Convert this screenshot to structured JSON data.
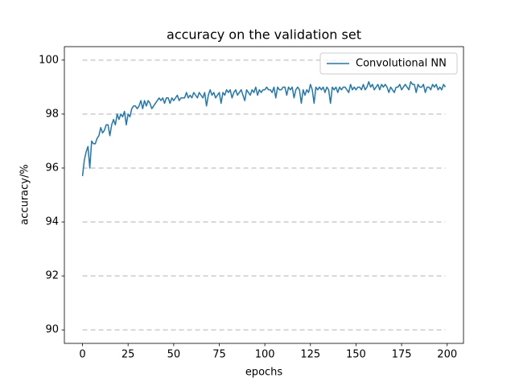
{
  "chart_data": {
    "type": "line",
    "title": "accuracy on the validation set",
    "x_label": "epochs",
    "y_label": "accuracy/%",
    "x": [
      0,
      1,
      2,
      3,
      4,
      5,
      6,
      7,
      8,
      9,
      10,
      11,
      12,
      13,
      14,
      15,
      16,
      17,
      18,
      19,
      20,
      21,
      22,
      23,
      24,
      25,
      26,
      27,
      28,
      29,
      30,
      31,
      32,
      33,
      34,
      35,
      36,
      37,
      38,
      39,
      40,
      41,
      42,
      43,
      44,
      45,
      46,
      47,
      48,
      49,
      50,
      51,
      52,
      53,
      54,
      55,
      56,
      57,
      58,
      59,
      60,
      61,
      62,
      63,
      64,
      65,
      66,
      67,
      68,
      69,
      70,
      71,
      72,
      73,
      74,
      75,
      76,
      77,
      78,
      79,
      80,
      81,
      82,
      83,
      84,
      85,
      86,
      87,
      88,
      89,
      90,
      91,
      92,
      93,
      94,
      95,
      96,
      97,
      98,
      99,
      100,
      101,
      102,
      103,
      104,
      105,
      106,
      107,
      108,
      109,
      110,
      111,
      112,
      113,
      114,
      115,
      116,
      117,
      118,
      119,
      120,
      121,
      122,
      123,
      124,
      125,
      126,
      127,
      128,
      129,
      130,
      131,
      132,
      133,
      134,
      135,
      136,
      137,
      138,
      139,
      140,
      141,
      142,
      143,
      144,
      145,
      146,
      147,
      148,
      149,
      150,
      151,
      152,
      153,
      154,
      155,
      156,
      157,
      158,
      159,
      160,
      161,
      162,
      163,
      164,
      165,
      166,
      167,
      168,
      169,
      170,
      171,
      172,
      173,
      174,
      175,
      176,
      177,
      178,
      179,
      180,
      181,
      182,
      183,
      184,
      185,
      186,
      187,
      188,
      189,
      190,
      191,
      192,
      193,
      194,
      195,
      196,
      197,
      198,
      199
    ],
    "series": [
      {
        "name": "Convolutional NN",
        "color": "#1f77b4",
        "values": [
          95.7,
          96.3,
          96.6,
          96.8,
          96.0,
          97.0,
          96.9,
          96.9,
          97.1,
          97.2,
          97.5,
          97.3,
          97.4,
          97.6,
          97.6,
          97.2,
          97.6,
          97.8,
          97.6,
          98.0,
          97.8,
          98.0,
          97.9,
          98.1,
          97.6,
          98.0,
          97.9,
          98.2,
          98.3,
          98.3,
          98.2,
          98.3,
          98.5,
          98.2,
          98.5,
          98.3,
          98.5,
          98.4,
          98.2,
          98.3,
          98.4,
          98.5,
          98.6,
          98.5,
          98.6,
          98.4,
          98.6,
          98.6,
          98.4,
          98.6,
          98.5,
          98.6,
          98.7,
          98.5,
          98.6,
          98.6,
          98.6,
          98.8,
          98.6,
          98.7,
          98.6,
          98.8,
          98.7,
          98.6,
          98.8,
          98.7,
          98.6,
          98.8,
          98.3,
          98.7,
          98.9,
          98.7,
          98.8,
          98.6,
          98.7,
          98.8,
          98.4,
          98.8,
          98.7,
          98.9,
          98.8,
          98.9,
          98.6,
          98.8,
          98.9,
          98.7,
          98.8,
          98.9,
          98.7,
          98.5,
          98.9,
          98.8,
          98.7,
          98.9,
          98.8,
          99.0,
          98.7,
          98.9,
          98.8,
          98.9,
          98.9,
          99.0,
          98.9,
          98.9,
          98.8,
          99.0,
          98.6,
          99.0,
          98.9,
          98.9,
          99.0,
          99.0,
          98.7,
          99.0,
          98.9,
          99.0,
          98.6,
          98.9,
          99.0,
          98.9,
          98.4,
          98.9,
          98.7,
          98.9,
          98.8,
          99.1,
          98.9,
          98.4,
          99.0,
          98.9,
          99.0,
          98.9,
          99.0,
          98.8,
          99.0,
          98.9,
          98.4,
          99.0,
          98.9,
          99.0,
          98.8,
          99.0,
          98.9,
          99.0,
          99.0,
          98.9,
          98.8,
          99.1,
          98.9,
          99.0,
          98.9,
          99.0,
          99.0,
          98.9,
          99.1,
          98.9,
          99.0,
          99.2,
          99.0,
          99.1,
          98.9,
          99.0,
          99.1,
          98.9,
          99.1,
          99.0,
          99.1,
          99.0,
          98.8,
          99.0,
          98.9,
          98.8,
          99.0,
          99.0,
          99.1,
          98.9,
          99.0,
          99.1,
          99.0,
          98.9,
          99.2,
          99.1,
          99.1,
          98.8,
          99.1,
          99.0,
          99.0,
          99.1,
          98.8,
          99.0,
          99.0,
          98.9,
          99.1,
          99.0,
          99.1,
          98.9,
          99.0,
          98.9,
          99.1,
          99.0
        ]
      }
    ],
    "xlim": [
      -9.95,
      208.95
    ],
    "ylim": [
      89.5,
      100.5
    ],
    "xticks": [
      0,
      25,
      50,
      75,
      100,
      125,
      150,
      175,
      200
    ],
    "yticks": [
      90,
      92,
      94,
      96,
      98,
      100
    ],
    "grid": true,
    "legend": "upper-right"
  }
}
